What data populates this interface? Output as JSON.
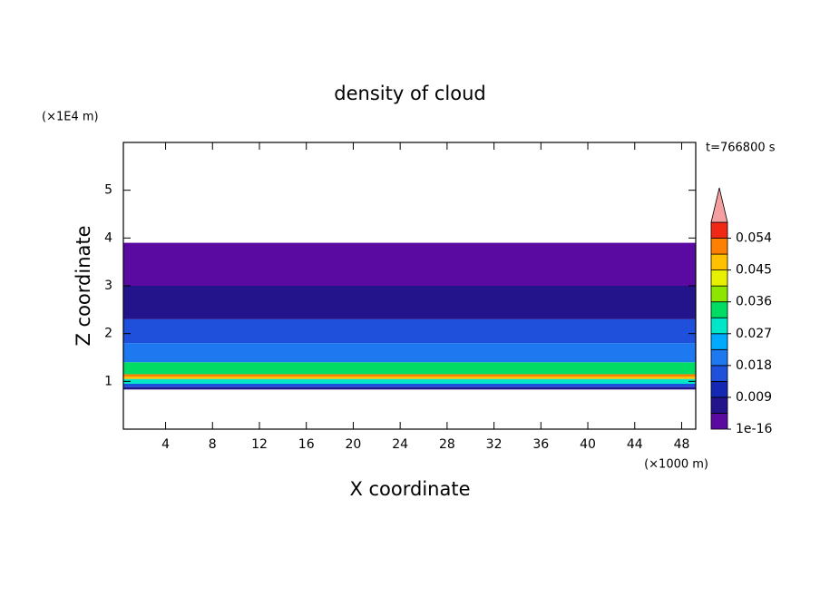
{
  "chart_data": {
    "type": "contour",
    "title": "density of cloud",
    "x_label": "X coordinate",
    "x_unit": "(×1000 m)",
    "y_label": "Z coordinate",
    "y_unit": "(×1E4 m)",
    "time_label": "t=766800 s",
    "xlim": [
      0.4,
      49.2
    ],
    "ylim": [
      0,
      6
    ],
    "xticks": [
      4,
      8,
      12,
      16,
      20,
      24,
      28,
      32,
      36,
      40,
      44,
      48
    ],
    "yticks": [
      1,
      2,
      3,
      4,
      5
    ],
    "layers": [
      {
        "z": [
          0.83,
          0.88
        ],
        "value": 0.006
      },
      {
        "z": [
          0.88,
          0.95
        ],
        "value": 0.015
      },
      {
        "z": [
          0.95,
          1.05
        ],
        "value": 0.03
      },
      {
        "z": [
          1.05,
          1.1
        ],
        "value": 0.045
      },
      {
        "z": [
          1.1,
          1.15
        ],
        "value": 0.052
      },
      {
        "z": [
          1.15,
          1.4
        ],
        "value": 0.032
      },
      {
        "z": [
          1.4,
          1.8
        ],
        "value": 0.022
      },
      {
        "z": [
          1.8,
          2.3
        ],
        "value": 0.014
      },
      {
        "z": [
          2.3,
          3.0
        ],
        "value": 0.006
      },
      {
        "z": [
          3.0,
          3.9
        ],
        "value": 0.002
      }
    ],
    "colorbar": {
      "levels": [
        1e-16,
        0.0045,
        0.009,
        0.0135,
        0.018,
        0.0225,
        0.027,
        0.0315,
        0.036,
        0.0405,
        0.045,
        0.0495,
        0.054,
        0.0585
      ],
      "colors": [
        "#5a0aa0",
        "#24148c",
        "#1428b4",
        "#1e50dc",
        "#1e78f0",
        "#00aaff",
        "#00e6c8",
        "#00dc64",
        "#8ce600",
        "#e6f000",
        "#ffc000",
        "#ff8000",
        "#f02814"
      ],
      "extend_color": "#f4a0a0",
      "ticks": [
        1e-16,
        0.009,
        0.018,
        0.027,
        0.036,
        0.045,
        0.054
      ]
    }
  }
}
